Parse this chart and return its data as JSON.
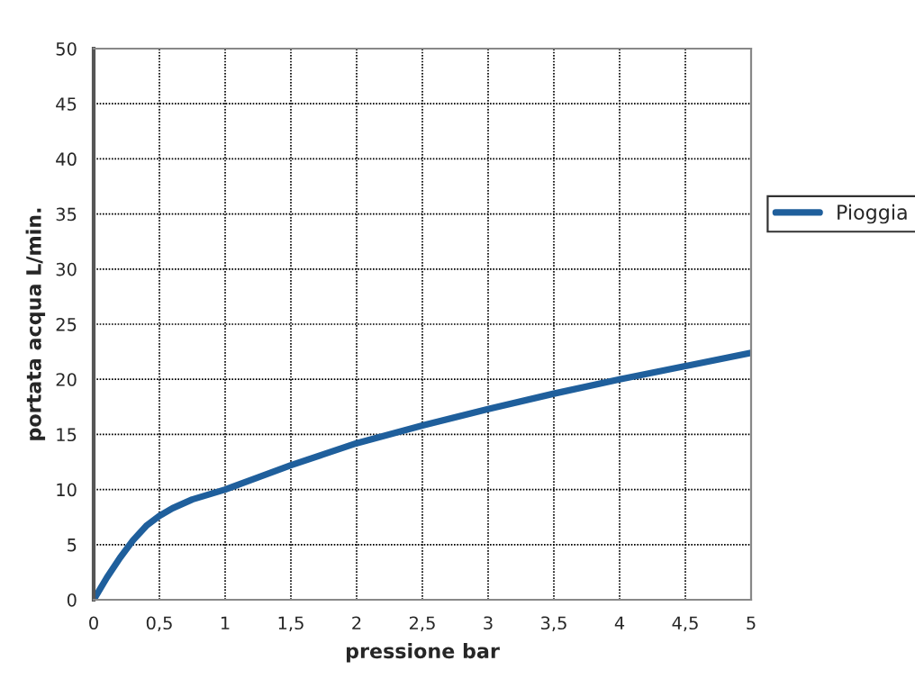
{
  "chart_data": {
    "type": "line",
    "xlabel": "pressione bar",
    "ylabel": "portata acqua L/min.",
    "x": [
      0,
      0.1,
      0.2,
      0.3,
      0.4,
      0.5,
      0.6,
      0.75,
      1,
      1.25,
      1.5,
      1.75,
      2,
      2.5,
      3,
      3.5,
      4,
      4.5,
      5
    ],
    "series": [
      {
        "name": "Pioggia",
        "color": "#1f5f9c",
        "values": [
          0,
          2,
          3.8,
          5.4,
          6.7,
          7.6,
          8.3,
          9.1,
          10,
          11.1,
          12.2,
          13.2,
          14.2,
          15.8,
          17.3,
          18.7,
          20,
          21.2,
          22.4
        ]
      }
    ],
    "xlim": [
      0,
      5
    ],
    "ylim": [
      0,
      50
    ],
    "xticks": [
      0,
      {
        "value": 0.5,
        "label": "0,5"
      },
      1,
      {
        "value": 1.5,
        "label": "1,5"
      },
      2,
      {
        "value": 2.5,
        "label": "2,5"
      },
      3,
      {
        "value": 3.5,
        "label": "3,5"
      },
      4,
      {
        "value": 4.5,
        "label": "4,5"
      },
      5
    ],
    "yticks": [
      0,
      5,
      10,
      15,
      20,
      25,
      30,
      35,
      40,
      45,
      50
    ],
    "grid": true,
    "legend": "right",
    "line_style": "solid",
    "marker": "none"
  }
}
